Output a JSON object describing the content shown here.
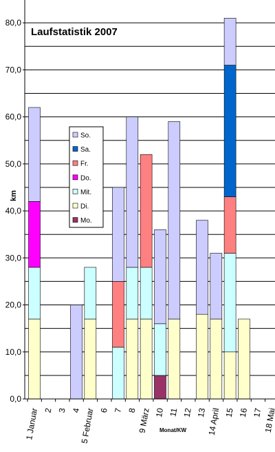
{
  "chart_data": {
    "type": "bar",
    "stacked": true,
    "title": "Laufstatistik 2007",
    "ylabel": "km",
    "xlabel": "Monat/KW",
    "ylim": [
      0,
      85
    ],
    "yticks": [
      0,
      10,
      20,
      30,
      40,
      50,
      60,
      70,
      80
    ],
    "ytick_labels": [
      "0,0",
      "10,0",
      "20,0",
      "30,0",
      "40,0",
      "50,0",
      "60,0",
      "70,0",
      "80,0"
    ],
    "grid": true,
    "legend_position": "middle-left",
    "categories": [
      "1 Januar",
      "2",
      "3",
      "4",
      "5 Februar",
      "6",
      "7",
      "8",
      "9 März",
      "10",
      "11",
      "12",
      "13",
      "14 April",
      "15",
      "16",
      "17",
      "18 Mai"
    ],
    "series": [
      {
        "name": "Mo.",
        "color": "#993366",
        "values": [
          0,
          0,
          0,
          0,
          0,
          0,
          0,
          0,
          0,
          5,
          0,
          0,
          0,
          0,
          0,
          0,
          0,
          0
        ]
      },
      {
        "name": "Di.",
        "color": "#ffffcc",
        "values": [
          17,
          0,
          0,
          0,
          17,
          0,
          0,
          17,
          17,
          0,
          17,
          0,
          18,
          17,
          10,
          17,
          0,
          0
        ]
      },
      {
        "name": "Mit.",
        "color": "#ccffff",
        "values": [
          11,
          0,
          0,
          0,
          11,
          0,
          11,
          11,
          11,
          11,
          0,
          0,
          0,
          0,
          21,
          0,
          0,
          0
        ]
      },
      {
        "name": "Do.",
        "color": "#ff00ff",
        "values": [
          14,
          0,
          0,
          0,
          0,
          0,
          0,
          0,
          0,
          0,
          0,
          0,
          0,
          0,
          0,
          0,
          0,
          0
        ]
      },
      {
        "name": "Fr.",
        "color": "#ff8080",
        "values": [
          0,
          0,
          0,
          0,
          0,
          0,
          14,
          0,
          24,
          0,
          0,
          0,
          0,
          0,
          12,
          0,
          0,
          0
        ]
      },
      {
        "name": "Sa.",
        "color": "#0066cc",
        "values": [
          0,
          0,
          0,
          0,
          0,
          0,
          0,
          0,
          0,
          0,
          0,
          0,
          0,
          0,
          28,
          0,
          0,
          0
        ]
      },
      {
        "name": "So.",
        "color": "#ccccff",
        "values": [
          20,
          0,
          0,
          20,
          0,
          0,
          20,
          32,
          0,
          20,
          42,
          0,
          20,
          14,
          10,
          0,
          0,
          0
        ]
      }
    ],
    "legend_order": [
      "So.",
      "Sa.",
      "Fr.",
      "Do.",
      "Mit.",
      "Di.",
      "Mo."
    ]
  }
}
